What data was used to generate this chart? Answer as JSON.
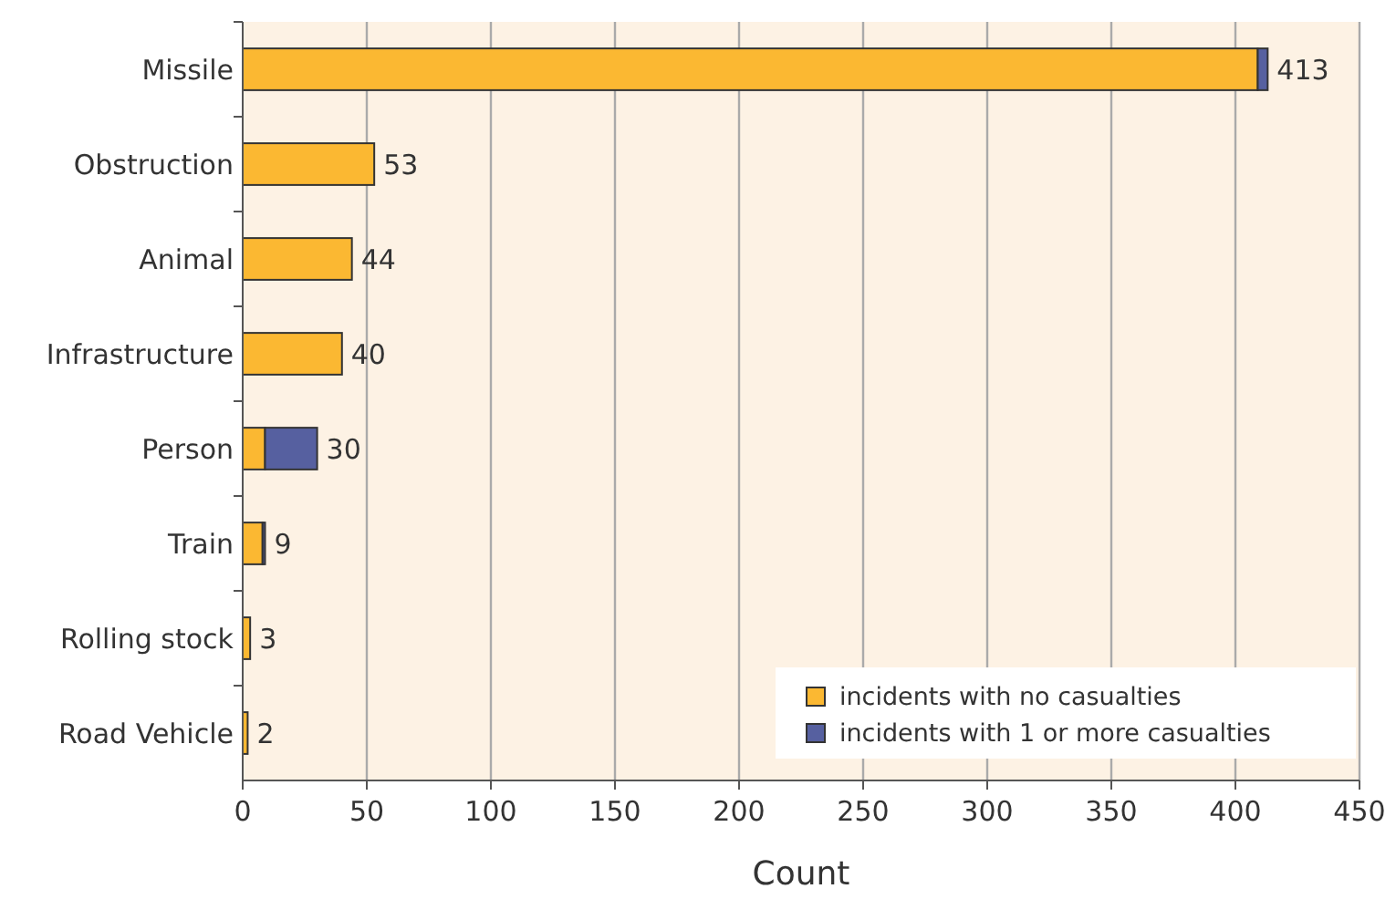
{
  "chart_data": {
    "type": "bar",
    "orientation": "horizontal",
    "stacked": true,
    "xlabel": "Count",
    "categories": [
      "Missile",
      "Obstruction",
      "Animal",
      "Infrastructure",
      "Person",
      "Train",
      "Rolling stock",
      "Road Vehicle"
    ],
    "series": [
      {
        "name": "incidents with no casualties",
        "color": "#fbb832",
        "values": [
          409,
          53,
          44,
          40,
          9,
          8,
          3,
          2
        ]
      },
      {
        "name": "incidents with 1 or more casualties",
        "color": "#5660a0",
        "values": [
          4,
          0,
          0,
          0,
          21,
          1,
          0,
          0
        ]
      }
    ],
    "totals": [
      "413",
      "53",
      "44",
      "40",
      "30",
      "9",
      "3",
      "2"
    ],
    "xlim": [
      0,
      450
    ],
    "xticks": [
      0,
      50,
      100,
      150,
      200,
      250,
      300,
      350,
      400,
      450
    ],
    "grid": "x",
    "legend": "bottom right"
  }
}
